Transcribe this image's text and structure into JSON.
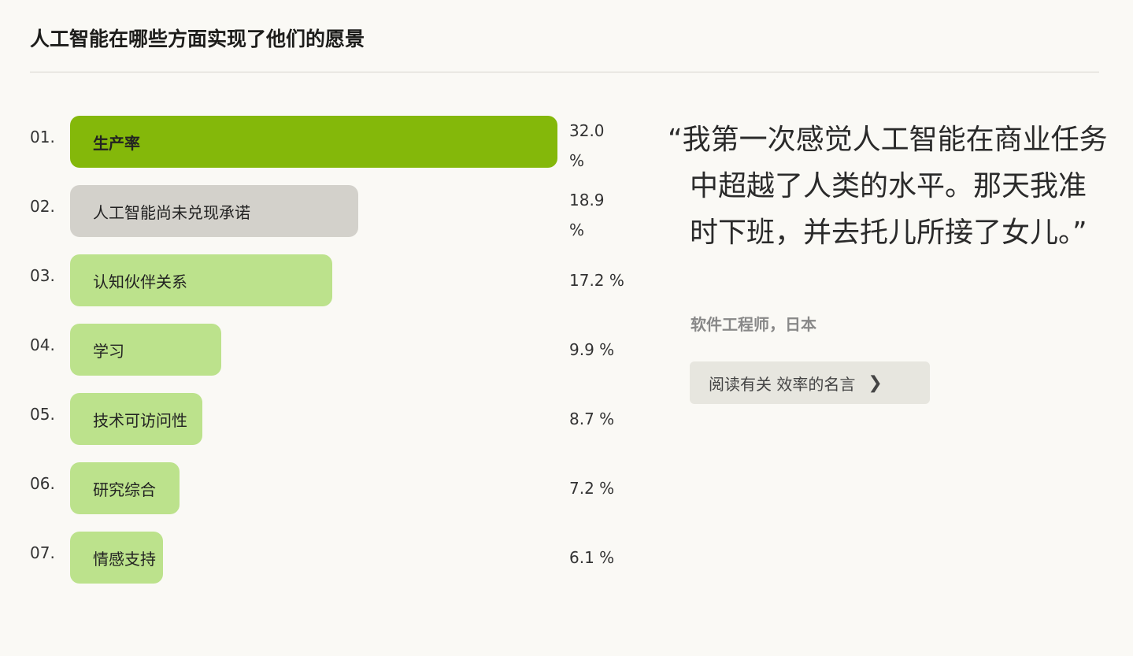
{
  "title": "人工智能在哪些方面实现了他们的愿景",
  "chart_data": {
    "type": "bar",
    "orientation": "horizontal",
    "categories": [
      "生产率",
      "人工智能尚未兑现承诺",
      "认知伙伴关系",
      "学习",
      "技术可访问性",
      "研究综合",
      "情感支持"
    ],
    "indices": [
      "01.",
      "02.",
      "03.",
      "04.",
      "05.",
      "06.",
      "07."
    ],
    "values": [
      32.0,
      18.9,
      17.2,
      9.9,
      8.7,
      7.2,
      6.1
    ],
    "value_labels": [
      "32.0 %",
      "18.9 %",
      "17.2 %",
      "9.9 %",
      "8.7 %",
      "7.2 %",
      "6.1 %"
    ],
    "unit": "%",
    "colors": [
      "#84b80a",
      "#d3d1cb",
      "#bce28c",
      "#bce28c",
      "#bce28c",
      "#bce28c",
      "#bce28c"
    ]
  },
  "quote": {
    "text": "“我第一次感觉人工智能在商业任务中超越了人类的水平。那天我准时下班，并去托儿所接了女儿。”",
    "author": "软件工程师，日本",
    "button_label": "阅读有关 效率的名言",
    "button_icon": "chevron-right-icon"
  }
}
